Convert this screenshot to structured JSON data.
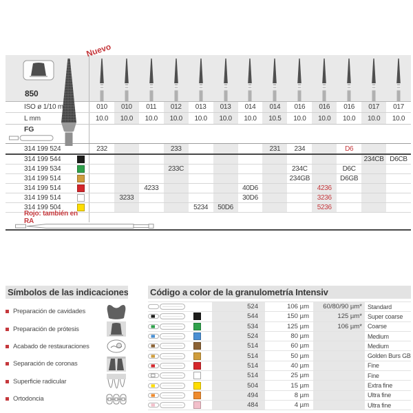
{
  "product_table": {
    "model": "850",
    "nuevo_label": "Nuevo",
    "iso_label": "ISO ø 1/10 mm",
    "l_label": "L mm",
    "fg_label": "FG",
    "iso_values": [
      "010",
      "010",
      "011",
      "012",
      "013",
      "013",
      "014",
      "014",
      "016",
      "016",
      "016",
      "017",
      "017"
    ],
    "l_values": [
      "10.0",
      "10.0",
      "10.0",
      "10.0",
      "10.0",
      "10.0",
      "10.0",
      "10.5",
      "10.0",
      "10.0",
      "10.0",
      "10.0",
      "10.0"
    ],
    "rows": [
      {
        "ref": "314 199 524",
        "color_name": "none",
        "hex": "",
        "cells": [
          {
            "col": 1,
            "v": "232"
          },
          {
            "col": 4,
            "v": "233"
          },
          {
            "col": 8,
            "v": "231"
          },
          {
            "col": 9,
            "v": "234"
          },
          {
            "col": 11,
            "v": "D6",
            "red": true
          }
        ]
      },
      {
        "ref": "314 199 544",
        "color_name": "black",
        "hex": "#1d1d1b",
        "cells": [
          {
            "col": 12,
            "v": "234CB"
          },
          {
            "col": 13,
            "v": "D6CB"
          }
        ]
      },
      {
        "ref": "314 199 534",
        "color_name": "green",
        "hex": "#2fa14b",
        "cells": [
          {
            "col": 4,
            "v": "233C"
          },
          {
            "col": 9,
            "v": "234C"
          },
          {
            "col": 11,
            "v": "D6C"
          }
        ]
      },
      {
        "ref": "314 199 514",
        "color_name": "gold",
        "hex": "#cf9c3c",
        "cells": [
          {
            "col": 9,
            "v": "234GB"
          },
          {
            "col": 11,
            "v": "D6GB"
          }
        ]
      },
      {
        "ref": "314 199 514",
        "color_name": "red",
        "hex": "#d5262b",
        "cells": [
          {
            "col": 3,
            "v": "4233"
          },
          {
            "col": 7,
            "v": "40D6"
          },
          {
            "col": 10,
            "v": "4236",
            "red": true
          }
        ]
      },
      {
        "ref": "314 199 514",
        "color_name": "white",
        "hex": "#ffffff",
        "cells": [
          {
            "col": 2,
            "v": "3233"
          },
          {
            "col": 7,
            "v": "30D6"
          },
          {
            "col": 10,
            "v": "3236",
            "red": true
          }
        ]
      },
      {
        "ref": "314 199 504",
        "color_name": "yellow",
        "hex": "#ffdd00",
        "cells": [
          {
            "col": 5,
            "v": "5234"
          },
          {
            "col": 6,
            "v": "50D6"
          },
          {
            "col": 10,
            "v": "5236",
            "red": true
          }
        ]
      }
    ],
    "rojo_note": "Rojo: también en RA"
  },
  "simbolos": {
    "heading": "Símbolos de las indicaciones",
    "items": [
      {
        "label": "Preparación de cavidades",
        "icon": "cavity-prep-icon"
      },
      {
        "label": "Preparación de prótesis",
        "icon": "prosthesis-prep-icon"
      },
      {
        "label": "Acabado de restauraciones",
        "icon": "restoration-finishing-icon"
      },
      {
        "label": "Separación de coronas",
        "icon": "crown-separation-icon"
      },
      {
        "label": "Superficie radicular",
        "icon": "root-surface-icon"
      },
      {
        "label": "Ortodoncia",
        "icon": "orthodontics-icon"
      }
    ]
  },
  "granulometria": {
    "heading": "Código a color de la granulometría Intensiv",
    "rows": [
      {
        "color_name": "none",
        "hex": "",
        "code": "524",
        "grain": "106 µm",
        "alt": "60/80/90 µm*",
        "desc": "Standard"
      },
      {
        "color_name": "black",
        "hex": "#1d1d1b",
        "code": "544",
        "grain": "150 µm",
        "alt": "125 µm*",
        "desc": "Super coarse"
      },
      {
        "color_name": "green",
        "hex": "#2fa14b",
        "code": "534",
        "grain": "125 µm",
        "alt": "106 µm*",
        "desc": "Coarse"
      },
      {
        "color_name": "blue",
        "hex": "#4a8fd3",
        "code": "524",
        "grain": "80 µm",
        "alt": "",
        "desc": "Medium"
      },
      {
        "color_name": "brown",
        "hex": "#8a6133",
        "code": "514",
        "grain": "60 µm",
        "alt": "",
        "desc": "Medium"
      },
      {
        "color_name": "gold",
        "hex": "#cf9c3c",
        "code": "514",
        "grain": "50 µm",
        "alt": "",
        "desc": "Golden Burs GB"
      },
      {
        "color_name": "red",
        "hex": "#d5262b",
        "code": "514",
        "grain": "40 µm",
        "alt": "",
        "desc": "Fine"
      },
      {
        "color_name": "white",
        "hex": "#ffffff",
        "code": "514",
        "grain": "25 µm",
        "alt": "",
        "desc": "Fine"
      },
      {
        "color_name": "yellow",
        "hex": "#ffdd00",
        "code": "504",
        "grain": "15 µm",
        "alt": "",
        "desc": "Extra fine"
      },
      {
        "color_name": "orange",
        "hex": "#ef8b2e",
        "code": "494",
        "grain": "8 µm",
        "alt": "",
        "desc": "Ultra fine"
      },
      {
        "color_name": "pink",
        "hex": "#f2bfca",
        "code": "484",
        "grain": "4 µm",
        "alt": "",
        "desc": "Ultra fine"
      }
    ]
  },
  "colors": {
    "accent_red": "#c5383c",
    "band_gray": "#e9e9e9",
    "header_band": "#e3e3e3"
  }
}
